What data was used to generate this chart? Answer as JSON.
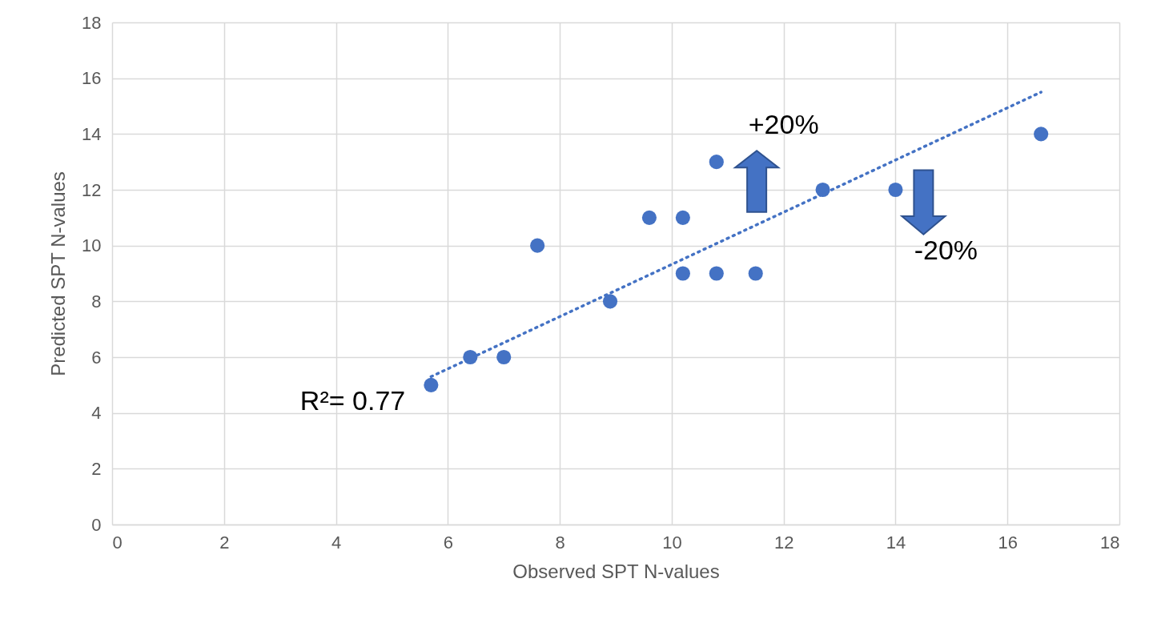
{
  "chart_data": {
    "type": "scatter",
    "xlabel": "Observed SPT N-values",
    "ylabel": "Predicted SPT N-values",
    "x": [
      5.7,
      6.4,
      7.0,
      7.6,
      8.9,
      9.6,
      10.2,
      10.2,
      10.8,
      10.8,
      11.5,
      12.7,
      14.0,
      16.6
    ],
    "series": [
      {
        "color": "#4472c4",
        "values": [
          5,
          6,
          6,
          10,
          8,
          11,
          11,
          9,
          13,
          9,
          9,
          12,
          12,
          14
        ]
      },
      {
        "type": "line",
        "color": "#4472c4",
        "line_style": "dotted",
        "marker": "none",
        "x": [
          5.7,
          16.6
        ],
        "values": [
          5.3,
          15.5
        ]
      }
    ],
    "xlim": [
      0,
      18
    ],
    "ylim": [
      0,
      18
    ],
    "xticks": [
      0,
      2,
      4,
      6,
      8,
      10,
      12,
      14,
      16,
      18
    ],
    "yticks": [
      0,
      2,
      4,
      6,
      8,
      10,
      12,
      14,
      16,
      18
    ],
    "grid": true,
    "marker": "circle",
    "annotations": [
      "R²= 0.77",
      "+20%",
      "-20%"
    ]
  }
}
